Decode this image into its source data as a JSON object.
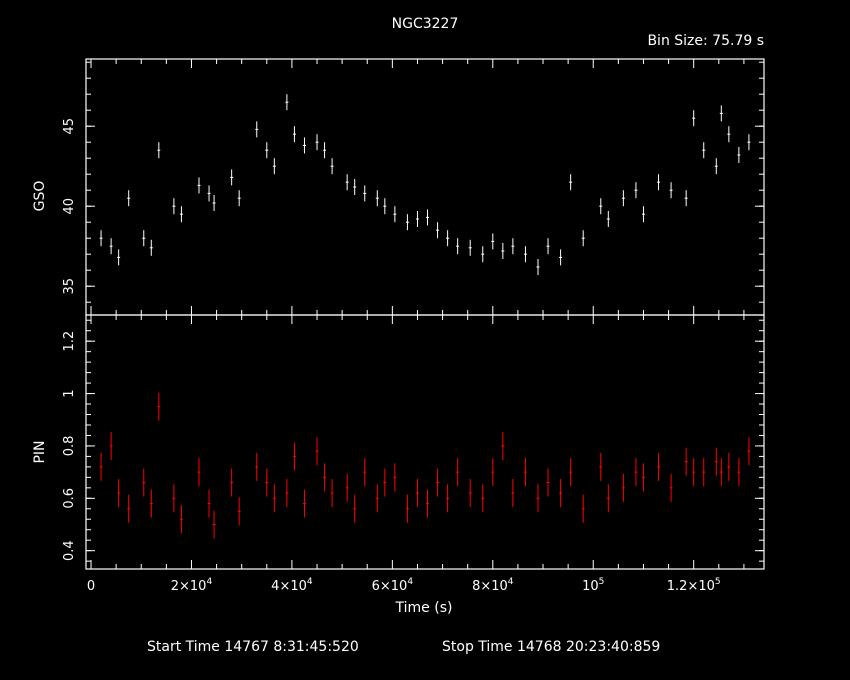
{
  "title": "NGC3227",
  "bin_size": "Bin Size: 75.79 s",
  "footer": {
    "start": "Start Time 14767  8:31:45:520",
    "stop": "Stop Time 14768 20:23:40:859"
  },
  "colors": {
    "background": "#000000",
    "axes": "#ffffff",
    "gso": "#ffffff",
    "pin": "#ff0000"
  },
  "chart_data": [
    {
      "type": "scatter",
      "ylabel": "GSO",
      "xlim": [
        -1000,
        134000
      ],
      "ylim": [
        33.2,
        49.2
      ],
      "yticks": [
        35,
        40,
        45
      ],
      "yticklabels": [
        "35",
        "40",
        "45"
      ],
      "series": [
        {
          "x": [
            2000,
            4000,
            5500,
            7500,
            10500,
            12000,
            13500,
            16500,
            18000,
            21500,
            23500,
            24500,
            28000,
            29500,
            33000,
            35000,
            36500,
            39000,
            40500,
            42500,
            45000,
            46500,
            48000,
            51000,
            52500,
            54500,
            57000,
            58500,
            60500,
            63000,
            65000,
            67000,
            69000,
            71000,
            73000,
            75500,
            78000,
            80000,
            82000,
            84000,
            86500,
            89000,
            91000,
            93500,
            95500,
            98000,
            101500,
            103000,
            106000,
            108500,
            110000,
            113000,
            115500,
            118500,
            120000,
            122000,
            124500,
            125500,
            127000,
            129000,
            131000
          ],
          "y": [
            38,
            37.5,
            36.8,
            40.5,
            38,
            37.4,
            43.5,
            40,
            39.5,
            41.3,
            40.8,
            40.2,
            41.8,
            40.5,
            44.8,
            43.5,
            42.5,
            46.5,
            44.5,
            43.8,
            44,
            43.5,
            42.5,
            41.5,
            41.2,
            40.8,
            40.5,
            40,
            39.5,
            39,
            39.2,
            39.3,
            38.5,
            38,
            37.5,
            37.4,
            37,
            37.8,
            37.2,
            37.5,
            37,
            36.2,
            37.5,
            36.8,
            41.5,
            38,
            40,
            39.2,
            40.5,
            41,
            39.5,
            41.5,
            41,
            40.5,
            45.5,
            43.5,
            42.5,
            45.8,
            44.5,
            43.2,
            44
          ]
        }
      ]
    },
    {
      "type": "scatter",
      "ylabel": "PIN",
      "xlabel": "Time (s)",
      "xlim": [
        -1000,
        134000
      ],
      "ylim": [
        0.33,
        1.3
      ],
      "xticks": [
        0,
        20000,
        40000,
        60000,
        80000,
        100000,
        120000
      ],
      "xticklabels": [
        {
          "base": "0",
          "exp": ""
        },
        {
          "base": "2×10",
          "exp": "4"
        },
        {
          "base": "4×10",
          "exp": "4"
        },
        {
          "base": "6×10",
          "exp": "4"
        },
        {
          "base": "8×10",
          "exp": "4"
        },
        {
          "base": "10",
          "exp": "5"
        },
        {
          "base": "1.2×10",
          "exp": "5"
        }
      ],
      "yticks": [
        0.4,
        0.6,
        0.8,
        1,
        1.2
      ],
      "yticklabels": [
        "0.4",
        "0.6",
        "0.8",
        "1",
        "1.2"
      ],
      "series": [
        {
          "x": [
            2000,
            4000,
            5500,
            7500,
            10500,
            12000,
            13500,
            16500,
            18000,
            21500,
            23500,
            24500,
            28000,
            29500,
            33000,
            35000,
            36500,
            39000,
            40500,
            42500,
            45000,
            46500,
            48000,
            51000,
            52500,
            54500,
            57000,
            58500,
            60500,
            63000,
            65000,
            67000,
            69000,
            71000,
            73000,
            75500,
            78000,
            80000,
            82000,
            84000,
            86500,
            89000,
            91000,
            93500,
            95500,
            98000,
            101500,
            103000,
            106000,
            108500,
            110000,
            113000,
            115500,
            118500,
            120000,
            122000,
            124500,
            125500,
            127000,
            129000,
            131000
          ],
          "y": [
            0.72,
            0.8,
            0.62,
            0.56,
            0.66,
            0.58,
            0.95,
            0.6,
            0.52,
            0.7,
            0.58,
            0.5,
            0.66,
            0.55,
            0.72,
            0.66,
            0.6,
            0.62,
            0.76,
            0.58,
            0.78,
            0.68,
            0.62,
            0.64,
            0.56,
            0.7,
            0.6,
            0.66,
            0.68,
            0.56,
            0.62,
            0.58,
            0.66,
            0.6,
            0.7,
            0.62,
            0.6,
            0.7,
            0.8,
            0.62,
            0.7,
            0.6,
            0.66,
            0.62,
            0.7,
            0.56,
            0.72,
            0.6,
            0.64,
            0.7,
            0.68,
            0.72,
            0.64,
            0.74,
            0.7,
            0.7,
            0.74,
            0.7,
            0.72,
            0.7,
            0.78
          ]
        }
      ]
    }
  ]
}
